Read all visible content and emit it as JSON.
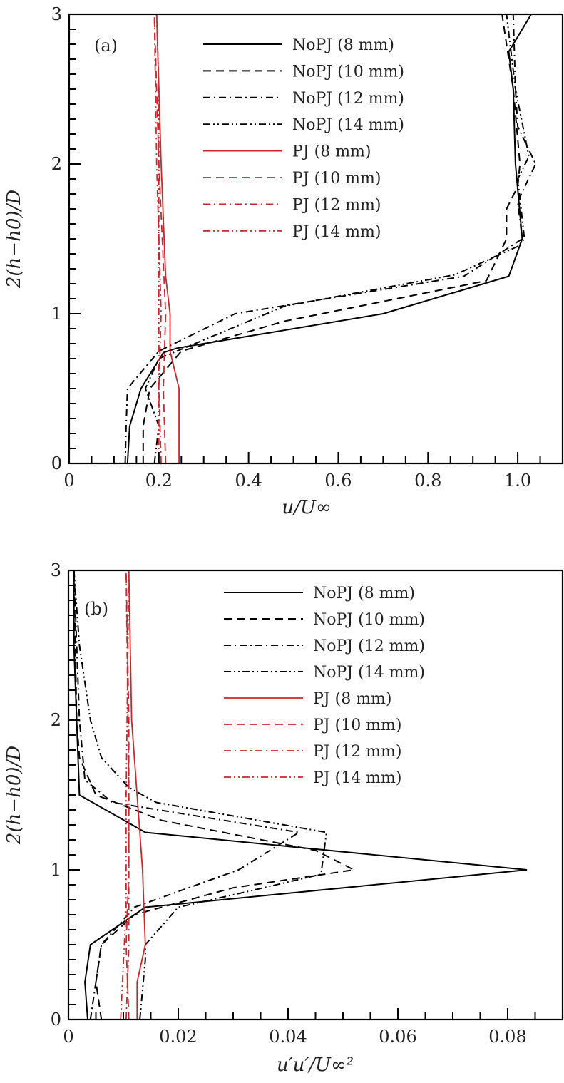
{
  "colors": {
    "black": "#000000",
    "red": "#d0242a"
  },
  "chart_data": [
    {
      "type": "line",
      "panel_label": "(a)",
      "xlabel": "u/U∞",
      "ylabel": "2(h−h0)/D",
      "xlim": [
        0,
        1.1
      ],
      "ylim": [
        0,
        3
      ],
      "x_ticks": [
        0,
        0.2,
        0.4,
        0.6,
        0.8,
        1.0
      ],
      "x_tick_labels": [
        "0",
        "0.2",
        "0.4",
        "0.6",
        "0.8",
        "1.0"
      ],
      "x_minor_step": 0.05,
      "y_ticks": [
        0,
        1,
        2,
        3
      ],
      "y_tick_labels": [
        "0",
        "1",
        "2",
        "3"
      ],
      "y_minor_step": 0.1,
      "legend_position": "top-right",
      "series": [
        {
          "name": "NoPJ (8 mm)",
          "color": "black",
          "dash": "solid",
          "points": [
            [
              0.13,
              0
            ],
            [
              0.135,
              0.25
            ],
            [
              0.16,
              0.5
            ],
            [
              0.21,
              0.74
            ],
            [
              0.24,
              0.77
            ],
            [
              0.7,
              1.0
            ],
            [
              0.98,
              1.25
            ],
            [
              1.01,
              1.5
            ],
            [
              0.995,
              2.0
            ],
            [
              0.99,
              2.5
            ],
            [
              0.98,
              2.75
            ],
            [
              1.03,
              3.0
            ]
          ]
        },
        {
          "name": "NoPJ (10 mm)",
          "color": "black",
          "dash": "dash",
          "points": [
            [
              0.165,
              0
            ],
            [
              0.165,
              0.25
            ],
            [
              0.18,
              0.5
            ],
            [
              0.25,
              0.75
            ],
            [
              0.48,
              0.95
            ],
            [
              0.93,
              1.22
            ],
            [
              0.975,
              1.5
            ],
            [
              0.975,
              1.7
            ],
            [
              1.0,
              1.85
            ],
            [
              1.005,
              2.0
            ],
            [
              0.99,
              2.5
            ],
            [
              0.965,
              3.0
            ]
          ]
        },
        {
          "name": "NoPJ (12 mm)",
          "color": "black",
          "dash": "dashdot",
          "points": [
            [
              0.125,
              0
            ],
            [
              0.127,
              0.25
            ],
            [
              0.13,
              0.5
            ],
            [
              0.2,
              0.75
            ],
            [
              0.37,
              1.0
            ],
            [
              0.88,
              1.25
            ],
            [
              1.01,
              1.5
            ],
            [
              1.0,
              1.75
            ],
            [
              1.04,
              2.0
            ],
            [
              1.0,
              2.25
            ],
            [
              0.995,
              2.5
            ],
            [
              0.99,
              3.0
            ]
          ]
        },
        {
          "name": "NoPJ (14 mm)",
          "color": "black",
          "dash": "dashdotdot",
          "points": [
            [
              0.19,
              0
            ],
            [
              0.2,
              0.25
            ],
            [
              0.17,
              0.5
            ],
            [
              0.2,
              0.7
            ],
            [
              0.48,
              1.05
            ],
            [
              0.86,
              1.26
            ],
            [
              1.0,
              1.45
            ],
            [
              1.015,
              1.5
            ],
            [
              1.0,
              1.9
            ],
            [
              1.025,
              2.05
            ],
            [
              0.995,
              2.5
            ],
            [
              0.975,
              3.0
            ]
          ]
        },
        {
          "name": "PJ (8 mm)",
          "color": "red",
          "dash": "solid",
          "points": [
            [
              0.245,
              0
            ],
            [
              0.245,
              0.5
            ],
            [
              0.225,
              0.75
            ],
            [
              0.225,
              1.0
            ],
            [
              0.215,
              1.25
            ],
            [
              0.205,
              2.0
            ],
            [
              0.195,
              3.0
            ]
          ]
        },
        {
          "name": "PJ (10 mm)",
          "color": "red",
          "dash": "dash",
          "points": [
            [
              0.215,
              0
            ],
            [
              0.21,
              0.5
            ],
            [
              0.215,
              1.0
            ],
            [
              0.2,
              2.0
            ],
            [
              0.19,
              3.0
            ]
          ]
        },
        {
          "name": "PJ (12 mm)",
          "color": "red",
          "dash": "dashdot",
          "points": [
            [
              0.205,
              0
            ],
            [
              0.2,
              0.5
            ],
            [
              0.205,
              1.0
            ],
            [
              0.195,
              2.0
            ],
            [
              0.19,
              3.0
            ]
          ]
        },
        {
          "name": "PJ (14 mm)",
          "color": "red",
          "dash": "dashdotdot",
          "points": [
            [
              0.2,
              0
            ],
            [
              0.2,
              0.75
            ],
            [
              0.2,
              1.5
            ],
            [
              0.2,
              2.5
            ],
            [
              0.195,
              3.0
            ]
          ]
        }
      ]
    },
    {
      "type": "line",
      "panel_label": "(b)",
      "xlabel": "u′u′/U∞²",
      "ylabel": "2(h−h0)/D",
      "xlim": [
        0,
        0.09
      ],
      "ylim": [
        0,
        3
      ],
      "x_ticks": [
        0,
        0.02,
        0.04,
        0.06,
        0.08
      ],
      "x_tick_labels": [
        "0",
        "0.02",
        "0.04",
        "0.06",
        "0.08"
      ],
      "x_minor_step": 0.005,
      "y_ticks": [
        0,
        1,
        2,
        3
      ],
      "y_tick_labels": [
        "0",
        "1",
        "2",
        "3"
      ],
      "y_minor_step": 0.1,
      "legend_position": "top-right",
      "series": [
        {
          "name": "NoPJ (8 mm)",
          "color": "black",
          "dash": "solid",
          "points": [
            [
              0.0035,
              0
            ],
            [
              0.003,
              0.25
            ],
            [
              0.004,
              0.5
            ],
            [
              0.014,
              0.75
            ],
            [
              0.0835,
              1.0
            ],
            [
              0.014,
              1.25
            ],
            [
              0.002,
              1.5
            ],
            [
              0.0015,
              2.0
            ],
            [
              0.001,
              2.5
            ],
            [
              0.001,
              3.0
            ]
          ]
        },
        {
          "name": "NoPJ (10 mm)",
          "color": "black",
          "dash": "dash",
          "points": [
            [
              0.006,
              0
            ],
            [
              0.005,
              0.25
            ],
            [
              0.006,
              0.5
            ],
            [
              0.012,
              0.7
            ],
            [
              0.03,
              0.88
            ],
            [
              0.052,
              1.0
            ],
            [
              0.045,
              1.13
            ],
            [
              0.017,
              1.33
            ],
            [
              0.005,
              1.5
            ],
            [
              0.002,
              1.75
            ],
            [
              0.0015,
              2.0
            ],
            [
              0.001,
              3.0
            ]
          ]
        },
        {
          "name": "NoPJ (12 mm)",
          "color": "black",
          "dash": "dashdot",
          "points": [
            [
              0.004,
              0
            ],
            [
              0.005,
              0.25
            ],
            [
              0.006,
              0.5
            ],
            [
              0.012,
              0.75
            ],
            [
              0.031,
              1.0
            ],
            [
              0.042,
              1.25
            ],
            [
              0.008,
              1.45
            ],
            [
              0.003,
              1.6
            ],
            [
              0.002,
              2.0
            ],
            [
              0.001,
              3.0
            ]
          ]
        },
        {
          "name": "NoPJ (14 mm)",
          "color": "black",
          "dash": "dashdotdot",
          "points": [
            [
              0.013,
              0
            ],
            [
              0.014,
              0.4
            ],
            [
              0.014,
              0.5
            ],
            [
              0.02,
              0.75
            ],
            [
              0.032,
              0.85
            ],
            [
              0.046,
              0.97
            ],
            [
              0.047,
              1.25
            ],
            [
              0.016,
              1.45
            ],
            [
              0.011,
              1.55
            ],
            [
              0.006,
              1.75
            ],
            [
              0.004,
              2.0
            ],
            [
              0.002,
              2.5
            ],
            [
              0.001,
              3.0
            ]
          ]
        },
        {
          "name": "PJ (8 mm)",
          "color": "red",
          "dash": "solid",
          "points": [
            [
              0.0125,
              0
            ],
            [
              0.0125,
              0.25
            ],
            [
              0.014,
              0.5
            ],
            [
              0.0135,
              1.0
            ],
            [
              0.0115,
              2.0
            ],
            [
              0.011,
              3.0
            ]
          ]
        },
        {
          "name": "PJ (10 mm)",
          "color": "red",
          "dash": "dash",
          "points": [
            [
              0.011,
              0
            ],
            [
              0.0105,
              0.5
            ],
            [
              0.011,
              1.0
            ],
            [
              0.011,
              2.0
            ],
            [
              0.0105,
              3.0
            ]
          ]
        },
        {
          "name": "PJ (12 mm)",
          "color": "red",
          "dash": "dashdot",
          "points": [
            [
              0.0105,
              0
            ],
            [
              0.011,
              0.5
            ],
            [
              0.011,
              1.5
            ],
            [
              0.0105,
              3.0
            ]
          ]
        },
        {
          "name": "PJ (14 mm)",
          "color": "red",
          "dash": "dashdotdot",
          "points": [
            [
              0.0095,
              0
            ],
            [
              0.0105,
              0.75
            ],
            [
              0.0105,
              1.5
            ],
            [
              0.011,
              3.0
            ]
          ]
        }
      ]
    }
  ]
}
